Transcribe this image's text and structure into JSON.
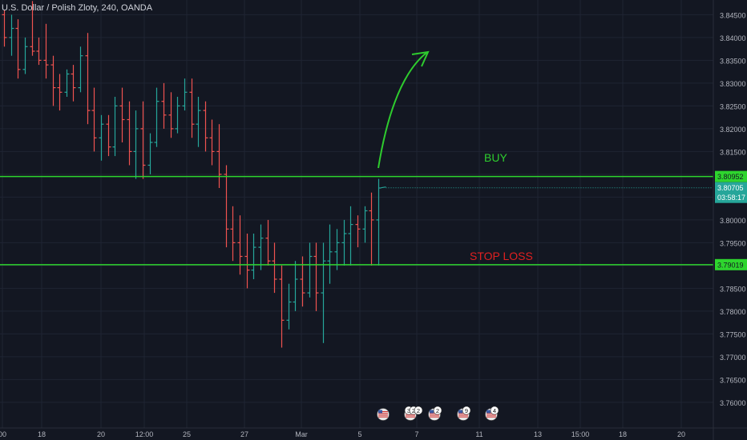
{
  "title": "U.S. Dollar / Polish Zloty, 240, OANDA",
  "colors": {
    "background": "#131722",
    "grid": "#1f2433",
    "text": "#b2b5be",
    "up": "#26a69a",
    "down": "#ef5350",
    "level_line": "#2ed52e",
    "buy_text": "#2ecc2e",
    "stop_text": "#e02020",
    "current_price_bg": "#26a69a",
    "level_label_bg": "#2ed52e"
  },
  "chart_data": {
    "type": "ohlc",
    "symbol": "U.S. Dollar / Polish Zloty",
    "interval": "240",
    "source": "OANDA",
    "ylim": [
      3.757,
      3.848
    ],
    "y_ticks": [
      3.845,
      3.84,
      3.835,
      3.83,
      3.825,
      3.82,
      3.815,
      3.81,
      3.805,
      3.8,
      3.795,
      3.79,
      3.785,
      3.78,
      3.775,
      3.77,
      3.765,
      3.76
    ],
    "x_ticks": [
      "00",
      "18",
      "20",
      "12:00",
      "25",
      "27",
      "Mar",
      "5",
      "7",
      "11",
      "13",
      "15:00",
      "18",
      "20"
    ],
    "levels": [
      {
        "name": "BUY",
        "value": 3.80952,
        "label": "3.80952"
      },
      {
        "name": "STOP LOSS",
        "value": 3.79019,
        "label": "3.79019"
      }
    ],
    "annotations": [
      "BUY",
      "STOP LOSS"
    ],
    "current_price": {
      "label": "3.80705",
      "value": 3.80705,
      "countdown": "03:58:17"
    },
    "event_badges": [
      "3",
      "2",
      "2",
      "2",
      "9",
      "4"
    ],
    "bars": [
      [
        3.845,
        3.846,
        3.838,
        3.84
      ],
      [
        3.84,
        3.845,
        3.836,
        3.842
      ],
      [
        3.842,
        3.844,
        3.831,
        3.833
      ],
      [
        3.833,
        3.84,
        3.832,
        3.838
      ],
      [
        3.838,
        3.848,
        3.836,
        3.837
      ],
      [
        3.837,
        3.84,
        3.834,
        3.835
      ],
      [
        3.835,
        3.843,
        3.831,
        3.834
      ],
      [
        3.834,
        3.836,
        3.825,
        3.829
      ],
      [
        3.829,
        3.832,
        3.824,
        3.828
      ],
      [
        3.828,
        3.833,
        3.827,
        3.832
      ],
      [
        3.832,
        3.834,
        3.826,
        3.829
      ],
      [
        3.829,
        3.838,
        3.828,
        3.836
      ],
      [
        3.836,
        3.841,
        3.821,
        3.824
      ],
      [
        3.824,
        3.829,
        3.815,
        3.818
      ],
      [
        3.818,
        3.823,
        3.813,
        3.821
      ],
      [
        3.821,
        3.823,
        3.814,
        3.816
      ],
      [
        3.816,
        3.827,
        3.814,
        3.825
      ],
      [
        3.825,
        3.829,
        3.817,
        3.822
      ],
      [
        3.822,
        3.826,
        3.812,
        3.815
      ],
      [
        3.815,
        3.824,
        3.809,
        3.82
      ],
      [
        3.82,
        3.826,
        3.809,
        3.812
      ],
      [
        3.812,
        3.819,
        3.81,
        3.817
      ],
      [
        3.817,
        3.829,
        3.816,
        3.826
      ],
      [
        3.826,
        3.83,
        3.82,
        3.823
      ],
      [
        3.823,
        3.828,
        3.818,
        3.82
      ],
      [
        3.82,
        3.827,
        3.819,
        3.825
      ],
      [
        3.825,
        3.831,
        3.824,
        3.828
      ],
      [
        3.828,
        3.831,
        3.818,
        3.821
      ],
      [
        3.821,
        3.827,
        3.816,
        3.824
      ],
      [
        3.824,
        3.826,
        3.815,
        3.818
      ],
      [
        3.818,
        3.822,
        3.812,
        3.815
      ],
      [
        3.815,
        3.821,
        3.807,
        3.81
      ],
      [
        3.81,
        3.812,
        3.794,
        3.798
      ],
      [
        3.798,
        3.803,
        3.791,
        3.795
      ],
      [
        3.795,
        3.801,
        3.788,
        3.792
      ],
      [
        3.792,
        3.797,
        3.785,
        3.789
      ],
      [
        3.789,
        3.797,
        3.787,
        3.794
      ],
      [
        3.794,
        3.799,
        3.789,
        3.796
      ],
      [
        3.796,
        3.8,
        3.79,
        3.791
      ],
      [
        3.791,
        3.795,
        3.784,
        3.787
      ],
      [
        3.787,
        3.79,
        3.772,
        3.778
      ],
      [
        3.778,
        3.786,
        3.776,
        3.782
      ],
      [
        3.782,
        3.791,
        3.78,
        3.787
      ],
      [
        3.787,
        3.792,
        3.781,
        3.784
      ],
      [
        3.784,
        3.795,
        3.783,
        3.792
      ],
      [
        3.792,
        3.795,
        3.78,
        3.784
      ],
      [
        3.784,
        3.795,
        3.773,
        3.791
      ],
      [
        3.791,
        3.799,
        3.786,
        3.793
      ],
      [
        3.793,
        3.798,
        3.789,
        3.795
      ],
      [
        3.795,
        3.8,
        3.79,
        3.797
      ],
      [
        3.797,
        3.803,
        3.79,
        3.799
      ],
      [
        3.799,
        3.801,
        3.794,
        3.798
      ],
      [
        3.798,
        3.803,
        3.795,
        3.802
      ],
      [
        3.802,
        3.806,
        3.79,
        3.8
      ],
      [
        3.8,
        3.809,
        3.79,
        3.807
      ]
    ]
  }
}
